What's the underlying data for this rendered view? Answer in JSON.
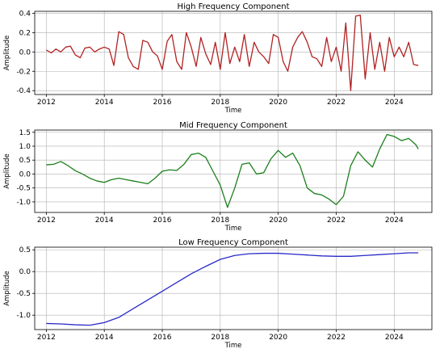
{
  "chart_data": [
    {
      "type": "line",
      "title": "High Frequency Component",
      "xlabel": "Time",
      "ylabel": "Amplitude",
      "xlim": [
        2011.6,
        2025.3
      ],
      "ylim": [
        -0.44,
        0.42
      ],
      "xticks": [
        "2012",
        "2014",
        "2016",
        "2018",
        "2020",
        "2022",
        "2024"
      ],
      "yticks": [
        "-0.4",
        "-0.2",
        "0.0",
        "0.2",
        "0.4"
      ],
      "grid": true,
      "color": "#b22222",
      "series": [
        {
          "x": [
            2012.0,
            2012.17,
            2012.33,
            2012.5,
            2012.67,
            2012.83,
            2013.0,
            2013.17,
            2013.33,
            2013.5,
            2013.67,
            2013.83,
            2014.0,
            2014.17,
            2014.33,
            2014.5,
            2014.67,
            2014.83,
            2015.0,
            2015.17,
            2015.33,
            2015.5,
            2015.67,
            2015.83,
            2016.0,
            2016.17,
            2016.33,
            2016.5,
            2016.67,
            2016.83,
            2017.0,
            2017.17,
            2017.33,
            2017.5,
            2017.67,
            2017.83,
            2018.0,
            2018.17,
            2018.33,
            2018.5,
            2018.67,
            2018.83,
            2019.0,
            2019.17,
            2019.33,
            2019.5,
            2019.67,
            2019.83,
            2020.0,
            2020.17,
            2020.33,
            2020.5,
            2020.67,
            2020.83,
            2021.0,
            2021.17,
            2021.33,
            2021.5,
            2021.67,
            2021.83,
            2022.0,
            2022.17,
            2022.33,
            2022.5,
            2022.67,
            2022.83,
            2023.0,
            2023.17,
            2023.33,
            2023.5,
            2023.67,
            2023.83,
            2024.0,
            2024.17,
            2024.33,
            2024.5,
            2024.67,
            2024.83
          ],
          "y": [
            0.02,
            -0.01,
            0.03,
            0.0,
            0.05,
            0.06,
            -0.03,
            -0.06,
            0.04,
            0.05,
            0.0,
            0.03,
            0.05,
            0.03,
            -0.14,
            0.21,
            0.18,
            -0.06,
            -0.15,
            -0.18,
            0.12,
            0.1,
            0.0,
            -0.04,
            -0.18,
            0.11,
            0.18,
            -0.1,
            -0.18,
            0.2,
            0.05,
            -0.15,
            0.15,
            -0.02,
            -0.13,
            0.1,
            -0.18,
            0.2,
            -0.12,
            0.05,
            -0.1,
            0.18,
            -0.15,
            0.1,
            0.0,
            -0.05,
            -0.12,
            0.18,
            0.15,
            -0.1,
            -0.2,
            0.05,
            0.15,
            0.21,
            0.1,
            -0.05,
            -0.07,
            -0.15,
            0.15,
            -0.1,
            0.05,
            -0.2,
            0.3,
            -0.4,
            0.37,
            0.38,
            -0.28,
            0.2,
            -0.18,
            0.1,
            -0.2,
            0.15,
            -0.05,
            0.05,
            -0.05,
            0.1,
            -0.13,
            -0.14
          ]
        }
      ]
    },
    {
      "type": "line",
      "title": "Mid Frequency Component",
      "xlabel": "Time",
      "ylabel": "Amplitude",
      "xlim": [
        2011.6,
        2025.3
      ],
      "ylim": [
        -1.38,
        1.58
      ],
      "xticks": [
        "2012",
        "2014",
        "2016",
        "2018",
        "2020",
        "2022",
        "2024"
      ],
      "yticks": [
        "-1.0",
        "-0.5",
        "0.0",
        "0.5",
        "1.0",
        "1.5"
      ],
      "grid": true,
      "color": "#1a7f1a",
      "series": [
        {
          "x": [
            2012.0,
            2012.25,
            2012.5,
            2012.75,
            2013.0,
            2013.25,
            2013.5,
            2013.75,
            2014.0,
            2014.25,
            2014.5,
            2014.75,
            2015.0,
            2015.25,
            2015.5,
            2015.75,
            2016.0,
            2016.25,
            2016.5,
            2016.75,
            2017.0,
            2017.25,
            2017.5,
            2017.75,
            2018.0,
            2018.25,
            2018.5,
            2018.75,
            2019.0,
            2019.25,
            2019.5,
            2019.75,
            2020.0,
            2020.25,
            2020.5,
            2020.75,
            2021.0,
            2021.25,
            2021.5,
            2021.75,
            2022.0,
            2022.25,
            2022.5,
            2022.75,
            2023.0,
            2023.25,
            2023.5,
            2023.75,
            2024.0,
            2024.25,
            2024.5,
            2024.75,
            2024.83
          ],
          "y": [
            0.33,
            0.35,
            0.45,
            0.3,
            0.12,
            0.0,
            -0.15,
            -0.25,
            -0.3,
            -0.2,
            -0.15,
            -0.2,
            -0.25,
            -0.3,
            -0.35,
            -0.15,
            0.1,
            0.15,
            0.13,
            0.35,
            0.7,
            0.75,
            0.6,
            0.1,
            -0.4,
            -1.2,
            -0.5,
            0.35,
            0.4,
            0.0,
            0.05,
            0.55,
            0.85,
            0.6,
            0.75,
            0.3,
            -0.5,
            -0.7,
            -0.75,
            -0.9,
            -1.1,
            -0.8,
            0.3,
            0.8,
            0.5,
            0.25,
            0.9,
            1.42,
            1.35,
            1.2,
            1.28,
            1.05,
            0.9
          ]
        }
      ]
    },
    {
      "type": "line",
      "title": "Low Frequency Component",
      "xlabel": "Time",
      "ylabel": "Amplitude",
      "xlim": [
        2011.6,
        2025.3
      ],
      "ylim": [
        -1.33,
        0.56
      ],
      "xticks": [
        "2012",
        "2014",
        "2016",
        "2018",
        "2020",
        "2022",
        "2024"
      ],
      "yticks": [
        "-1.0",
        "-0.5",
        "0.0",
        "0.5"
      ],
      "grid": true,
      "color": "#2a2ac8",
      "series": [
        {
          "x": [
            2012.0,
            2012.5,
            2013.0,
            2013.5,
            2014.0,
            2014.5,
            2015.0,
            2015.5,
            2016.0,
            2016.5,
            2017.0,
            2017.5,
            2018.0,
            2018.5,
            2019.0,
            2019.5,
            2020.0,
            2020.5,
            2021.0,
            2021.5,
            2022.0,
            2022.5,
            2023.0,
            2023.5,
            2024.0,
            2024.5,
            2024.83
          ],
          "y": [
            -1.19,
            -1.2,
            -1.22,
            -1.23,
            -1.17,
            -1.05,
            -0.85,
            -0.65,
            -0.45,
            -0.25,
            -0.05,
            0.12,
            0.28,
            0.37,
            0.41,
            0.42,
            0.42,
            0.4,
            0.38,
            0.36,
            0.35,
            0.35,
            0.37,
            0.39,
            0.41,
            0.43,
            0.43
          ]
        }
      ]
    }
  ]
}
